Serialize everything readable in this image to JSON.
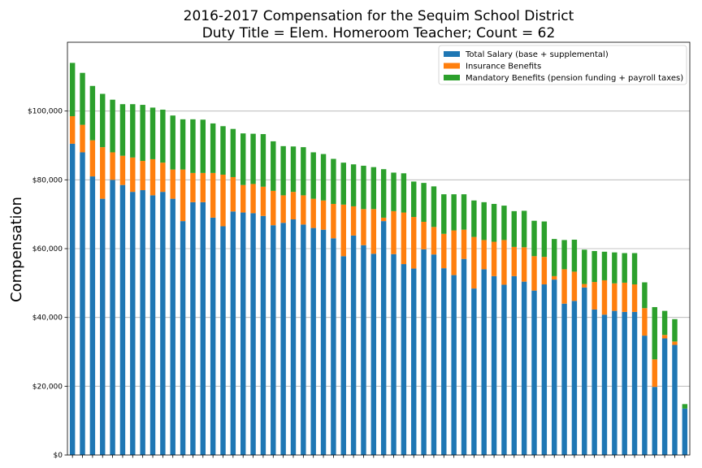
{
  "chart_data": {
    "type": "bar",
    "stacked": true,
    "title": [
      "2016-2017 Compensation for the Sequim School District",
      "Duty Title = Elem. Homeroom Teacher; Count = 62"
    ],
    "xlabel": "",
    "ylabel": "Compensation",
    "ylim": [
      0,
      120000
    ],
    "yticks": [
      0,
      20000,
      40000,
      60000,
      80000,
      100000
    ],
    "ytick_labels": [
      "$0",
      "$20,000",
      "$40,000",
      "$60,000",
      "$80,000",
      "$100,000"
    ],
    "grid": "y",
    "legend_position": "top-right",
    "count": 62,
    "series": [
      {
        "name": "Total Salary (base + supplemental)",
        "color": "#1f77b4",
        "values": [
          90500,
          88000,
          81000,
          74500,
          80000,
          78500,
          76500,
          77000,
          75500,
          76500,
          74500,
          68000,
          73500,
          73500,
          69000,
          66500,
          70800,
          70500,
          70300,
          69500,
          66800,
          67500,
          68500,
          67000,
          66000,
          65500,
          63000,
          57800,
          63800,
          61000,
          58500,
          68000,
          58400,
          55500,
          54200,
          59800,
          58300,
          54300,
          52300,
          57000,
          48400,
          54000,
          52000,
          49500,
          52000,
          50400,
          47800,
          49600,
          51000,
          44000,
          44800,
          48700,
          42300,
          40800,
          41900,
          41600,
          41600,
          34700,
          19800,
          33900,
          32000,
          13500
        ]
      },
      {
        "name": "Insurance Benefits",
        "color": "#ff7f0e",
        "values": [
          8000,
          8000,
          10500,
          15000,
          8000,
          8500,
          10000,
          8500,
          10500,
          8500,
          8500,
          15000,
          8500,
          8500,
          13000,
          15000,
          10000,
          8000,
          8500,
          8500,
          10000,
          8000,
          8000,
          8500,
          8500,
          8500,
          10000,
          15000,
          8500,
          10500,
          13000,
          1000,
          12500,
          15000,
          15000,
          8000,
          8000,
          10000,
          13000,
          8500,
          15000,
          8500,
          10000,
          13000,
          8500,
          10000,
          10000,
          8000,
          1000,
          10000,
          8500,
          1000,
          8000,
          10000,
          8000,
          8500,
          8000,
          8000,
          8000,
          1000,
          1000,
          0
        ]
      },
      {
        "name": "Mandatory Benefits (pension funding + payroll taxes)",
        "color": "#2ca02c",
        "values": [
          15500,
          15100,
          15800,
          15500,
          15300,
          15000,
          15500,
          16300,
          15000,
          15400,
          15700,
          14600,
          15600,
          15500,
          14400,
          14100,
          14000,
          15000,
          14600,
          15300,
          14400,
          14300,
          13200,
          14000,
          13500,
          13500,
          13100,
          12200,
          12200,
          12600,
          12200,
          14100,
          11200,
          11400,
          10300,
          11300,
          11800,
          11500,
          10500,
          10300,
          10600,
          11000,
          11000,
          10000,
          10400,
          10600,
          10300,
          10300,
          10800,
          8500,
          9300,
          10000,
          9000,
          8300,
          9000,
          8600,
          9100,
          7500,
          15200,
          7000,
          6500,
          1300
        ]
      }
    ]
  }
}
